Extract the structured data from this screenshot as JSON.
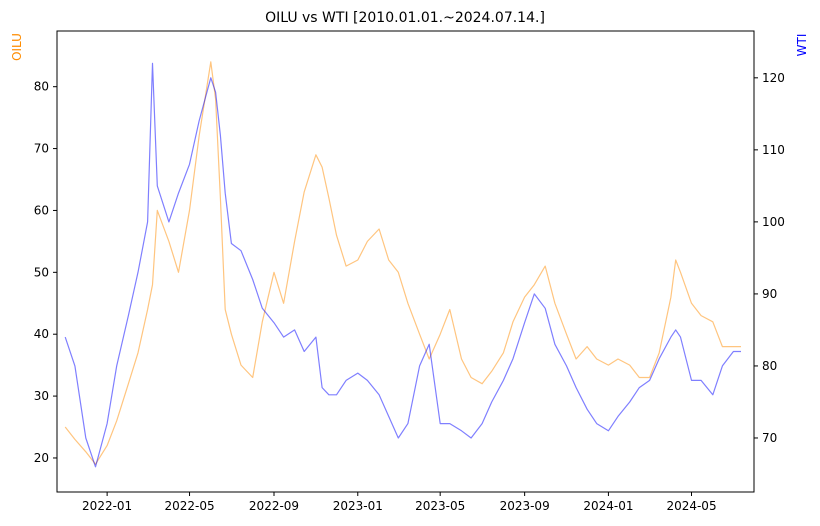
{
  "chart_data": {
    "type": "line",
    "title": "OILU vs WTI [2010.01.01.~2024.07.14.]",
    "grid": false,
    "legend": "none",
    "x_tick_labels": [
      "2022-01",
      "2022-05",
      "2022-09",
      "2023-01",
      "2023-05",
      "2023-09",
      "2024-01",
      "2024-05"
    ],
    "x_range": [
      "2021-10-20",
      "2024-07-31"
    ],
    "y_left": {
      "label": "OILU",
      "color": "#ff8c00",
      "range": [
        14.5,
        89
      ],
      "ticks": [
        20,
        30,
        40,
        50,
        60,
        70,
        80
      ]
    },
    "y_right": {
      "label": "WTI",
      "color": "#0000ff",
      "range": [
        62.5,
        126.5
      ],
      "ticks": [
        70,
        80,
        90,
        100,
        110,
        120
      ]
    },
    "series": [
      {
        "name": "OILU",
        "axis": "left",
        "color": "#ff8c00",
        "x": [
          "2021-11-01",
          "2021-11-15",
          "2021-12-01",
          "2021-12-15",
          "2022-01-01",
          "2022-01-15",
          "2022-02-01",
          "2022-02-15",
          "2022-03-01",
          "2022-03-08",
          "2022-03-15",
          "2022-04-01",
          "2022-04-15",
          "2022-05-01",
          "2022-05-15",
          "2022-06-01",
          "2022-06-08",
          "2022-06-15",
          "2022-06-22",
          "2022-07-01",
          "2022-07-15",
          "2022-08-01",
          "2022-08-15",
          "2022-09-01",
          "2022-09-15",
          "2022-10-01",
          "2022-10-15",
          "2022-11-01",
          "2022-11-10",
          "2022-11-20",
          "2022-12-01",
          "2022-12-15",
          "2023-01-01",
          "2023-01-15",
          "2023-02-01",
          "2023-02-15",
          "2023-03-01",
          "2023-03-15",
          "2023-04-01",
          "2023-04-15",
          "2023-05-01",
          "2023-05-15",
          "2023-06-01",
          "2023-06-15",
          "2023-07-01",
          "2023-07-15",
          "2023-08-01",
          "2023-08-15",
          "2023-09-01",
          "2023-09-15",
          "2023-10-01",
          "2023-10-15",
          "2023-11-01",
          "2023-11-15",
          "2023-12-01",
          "2023-12-15",
          "2024-01-01",
          "2024-01-15",
          "2024-02-01",
          "2024-02-15",
          "2024-03-01",
          "2024-03-15",
          "2024-04-01",
          "2024-04-08",
          "2024-04-15",
          "2024-05-01",
          "2024-05-15",
          "2024-06-01",
          "2024-06-15",
          "2024-07-01",
          "2024-07-12"
        ],
        "values": [
          25,
          23,
          21,
          19,
          22,
          26,
          32,
          37,
          44,
          48,
          60,
          55,
          50,
          60,
          72,
          84,
          78,
          62,
          44,
          40,
          35,
          33,
          42,
          50,
          45,
          55,
          63,
          69,
          67,
          62,
          56,
          51,
          52,
          55,
          57,
          52,
          50,
          45,
          40,
          36,
          40,
          44,
          36,
          33,
          32,
          34,
          37,
          42,
          46,
          48,
          51,
          45,
          40,
          36,
          38,
          36,
          35,
          36,
          35,
          33,
          33,
          37,
          46,
          52,
          50,
          45,
          43,
          42,
          38,
          38,
          38
        ]
      },
      {
        "name": "WTI",
        "axis": "right",
        "color": "#0000ff",
        "x": [
          "2021-11-01",
          "2021-11-15",
          "2021-12-01",
          "2021-12-15",
          "2022-01-01",
          "2022-01-15",
          "2022-02-01",
          "2022-02-15",
          "2022-03-01",
          "2022-03-08",
          "2022-03-15",
          "2022-04-01",
          "2022-04-15",
          "2022-05-01",
          "2022-05-15",
          "2022-06-01",
          "2022-06-08",
          "2022-06-15",
          "2022-06-22",
          "2022-07-01",
          "2022-07-15",
          "2022-08-01",
          "2022-08-15",
          "2022-09-01",
          "2022-09-15",
          "2022-10-01",
          "2022-10-15",
          "2022-11-01",
          "2022-11-10",
          "2022-11-20",
          "2022-12-01",
          "2022-12-15",
          "2023-01-01",
          "2023-01-15",
          "2023-02-01",
          "2023-02-15",
          "2023-03-01",
          "2023-03-15",
          "2023-04-01",
          "2023-04-15",
          "2023-05-01",
          "2023-05-15",
          "2023-06-01",
          "2023-06-15",
          "2023-07-01",
          "2023-07-15",
          "2023-08-01",
          "2023-08-15",
          "2023-09-01",
          "2023-09-15",
          "2023-10-01",
          "2023-10-15",
          "2023-11-01",
          "2023-11-15",
          "2023-12-01",
          "2023-12-15",
          "2024-01-01",
          "2024-01-15",
          "2024-02-01",
          "2024-02-15",
          "2024-03-01",
          "2024-03-15",
          "2024-04-01",
          "2024-04-08",
          "2024-04-15",
          "2024-05-01",
          "2024-05-15",
          "2024-06-01",
          "2024-06-15",
          "2024-07-01",
          "2024-07-12"
        ],
        "values": [
          84,
          80,
          70,
          66,
          72,
          80,
          87,
          93,
          100,
          122,
          105,
          100,
          104,
          108,
          114,
          120,
          118,
          112,
          104,
          97,
          96,
          92,
          88,
          86,
          84,
          85,
          82,
          84,
          77,
          76,
          76,
          78,
          79,
          78,
          76,
          73,
          70,
          72,
          80,
          83,
          72,
          72,
          71,
          70,
          72,
          75,
          78,
          81,
          86,
          90,
          88,
          83,
          80,
          77,
          74,
          72,
          71,
          73,
          75,
          77,
          78,
          81,
          84,
          85,
          84,
          78,
          78,
          76,
          80,
          82,
          82
        ]
      }
    ]
  }
}
